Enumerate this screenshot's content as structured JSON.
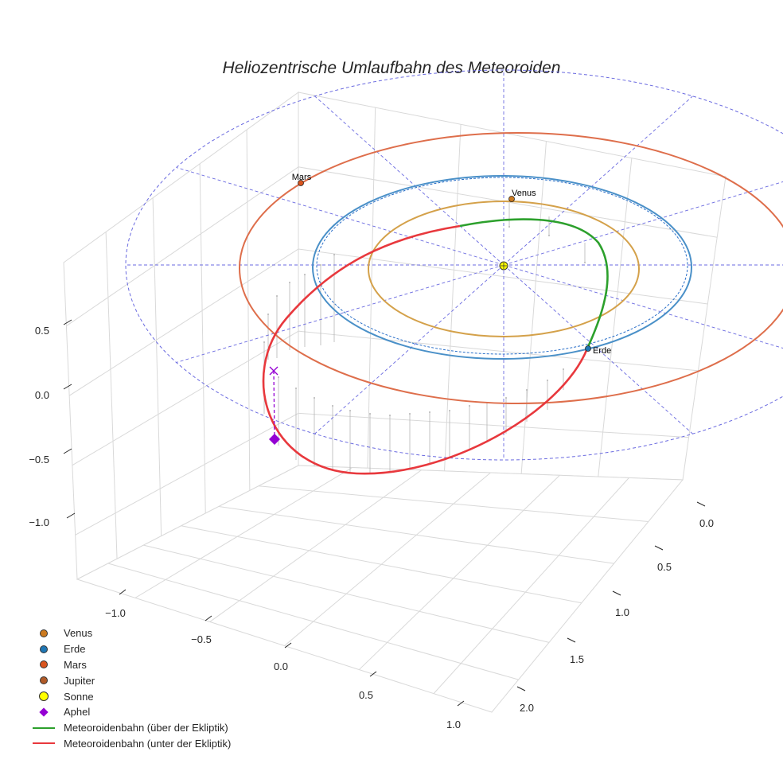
{
  "chart_data": {
    "type": "line",
    "title": "Heliozentrische Umlaufbahn des Meteoroiden",
    "projection": "3d",
    "axes": {
      "x": {
        "ticks": [
          "−1.0",
          "−0.5",
          "0.0",
          "0.5",
          "1.0"
        ]
      },
      "y": {
        "ticks": [
          "0.0",
          "0.5",
          "1.0",
          "1.5",
          "2.0"
        ]
      },
      "z": {
        "ticks": [
          "0.5",
          "0.0",
          "−0.5",
          "−1.0"
        ]
      }
    },
    "planets": [
      {
        "name": "Venus",
        "label": "Venus",
        "color": "#cc7a1f",
        "orbit_color": "#d4a14a"
      },
      {
        "name": "Erde",
        "label": "Erde",
        "color": "#1f77b4",
        "orbit_color": "#4a90c8"
      },
      {
        "name": "Mars",
        "label": "Mars",
        "color": "#d9541e",
        "orbit_color": "#de6e4b"
      },
      {
        "name": "Jupiter",
        "label": "",
        "color": "#b05a28",
        "orbit_color": "#6a6ae0"
      }
    ],
    "sun": {
      "name": "Sonne",
      "color": "#ffff00"
    },
    "aphel": {
      "name": "Aphel",
      "color": "#9400d3"
    },
    "series": [
      {
        "name": "Meteoroidenbahn (über der Ekliptik)",
        "color": "#2ca02c"
      },
      {
        "name": "Meteoroidenbahn (unter der Ekliptik)",
        "color": "#e8383d"
      }
    ],
    "legend_position": "bottom-left"
  },
  "legend": [
    {
      "label": "Venus",
      "kind": "dot",
      "color": "#cc7a1f"
    },
    {
      "label": "Erde",
      "kind": "dot",
      "color": "#1f77b4"
    },
    {
      "label": "Mars",
      "kind": "dot",
      "color": "#d9541e"
    },
    {
      "label": "Jupiter",
      "kind": "dot",
      "color": "#b05a28"
    },
    {
      "label": "Sonne",
      "kind": "bigdot",
      "color": "#ffff00"
    },
    {
      "label": "Aphel",
      "kind": "diamond",
      "color": "#9400d3"
    },
    {
      "label": "Meteoroidenbahn (über der Ekliptik)",
      "kind": "line",
      "color": "#2ca02c"
    },
    {
      "label": "Meteoroidenbahn (unter der Ekliptik)",
      "kind": "line",
      "color": "#e8383d"
    }
  ]
}
